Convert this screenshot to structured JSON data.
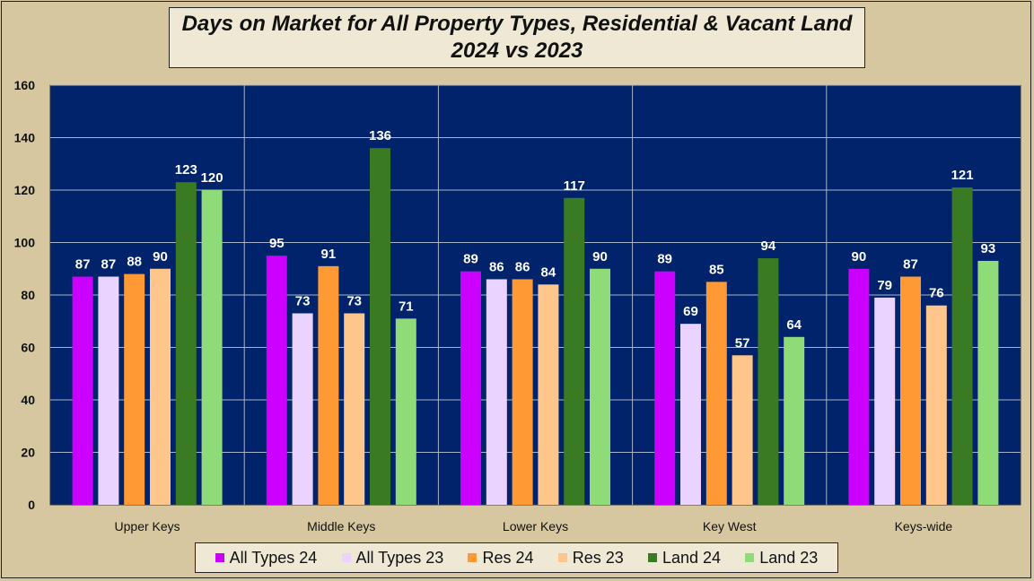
{
  "chart_data": {
    "type": "bar",
    "title_line1": "Days on Market for All Property Types, Residential & Vacant Land",
    "title_line2": "2024 vs 2023",
    "categories": [
      "Upper Keys",
      "Middle Keys",
      "Lower Keys",
      "Key West",
      "Keys-wide"
    ],
    "series": [
      {
        "name": "All Types 24",
        "color": "#cc00ff",
        "values": [
          87,
          95,
          89,
          89,
          90
        ]
      },
      {
        "name": "All Types 23",
        "color": "#ead4ff",
        "values": [
          87,
          73,
          86,
          69,
          79
        ]
      },
      {
        "name": "Res 24",
        "color": "#ff9933",
        "values": [
          88,
          91,
          86,
          85,
          87
        ]
      },
      {
        "name": "Res 23",
        "color": "#ffc68c",
        "values": [
          90,
          73,
          84,
          57,
          76
        ]
      },
      {
        "name": "Land 24",
        "color": "#3a7a23",
        "values": [
          123,
          136,
          117,
          94,
          121
        ]
      },
      {
        "name": "Land 23",
        "color": "#8fdb78",
        "values": [
          120,
          71,
          90,
          64,
          93
        ]
      }
    ],
    "ylim": [
      0,
      160
    ],
    "yticks": [
      0,
      20,
      40,
      60,
      80,
      100,
      120,
      140,
      160
    ],
    "plot_background": "#00236b",
    "grid": true,
    "legend_position": "bottom"
  }
}
